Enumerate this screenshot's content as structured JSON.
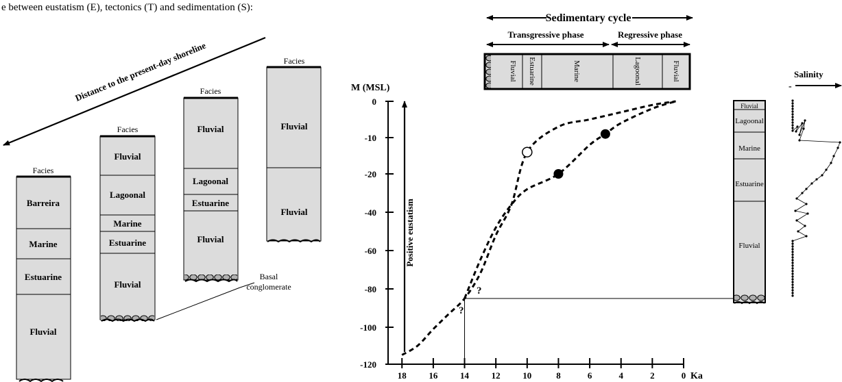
{
  "caption": "e between eustatism  (E), tectonics (T) and sedimentation (S):",
  "distance_label": "Distance to the present-day shoreline",
  "basal_label_1": "Basal",
  "basal_label_2": "conglomerate",
  "columns": [
    {
      "header": "Facies",
      "layers": [
        "Barreira",
        "Marine",
        "Estuarine",
        "Fluvial"
      ]
    },
    {
      "header": "Facies",
      "layers": [
        "Fluvial",
        "Lagoonal",
        "Marine",
        "Estuarine",
        "Fluvial"
      ]
    },
    {
      "header": "Facies",
      "layers": [
        "Fluvial",
        "Lagoonal",
        "Estuarine",
        "Fluvial"
      ]
    },
    {
      "header": "Facies",
      "layers": [
        "Fluvial",
        "Fluvial"
      ]
    }
  ],
  "cycle": {
    "title": "Sedimentary cycle",
    "transgressive": "Transgressive phase",
    "regressive": "Regressive phase",
    "facies": [
      "Fluvial",
      "Estuarine",
      "Marine",
      "Lagoonal",
      "Fluvial"
    ]
  },
  "chart_data": {
    "type": "line",
    "ylabel": "M (MSL)",
    "xlabel_unit": "Ka",
    "arrow_label": "Positive eustatism",
    "x_ticks": [
      18,
      16,
      14,
      12,
      10,
      8,
      6,
      4,
      2,
      0
    ],
    "y_ticks": [
      0,
      -10,
      -20,
      -40,
      -60,
      -80,
      -100,
      -120
    ],
    "question_marks": [
      "?",
      "?"
    ],
    "series": [
      {
        "points": [
          [
            18,
            -115
          ],
          [
            17,
            -110
          ],
          [
            16,
            -101
          ],
          [
            15,
            -93
          ],
          [
            14,
            -85
          ],
          [
            13,
            -72
          ],
          [
            12,
            -52
          ],
          [
            11,
            -36
          ],
          [
            10,
            -14
          ],
          [
            8,
            -7
          ],
          [
            6,
            -5
          ],
          [
            4,
            -3
          ],
          [
            2,
            -1
          ],
          [
            0.5,
            0
          ]
        ],
        "open_marker": [
          10,
          -14
        ]
      },
      {
        "points": [
          [
            14,
            -85
          ],
          [
            13,
            -65
          ],
          [
            12,
            -48
          ],
          [
            11,
            -36
          ],
          [
            10,
            -28
          ],
          [
            8,
            -20
          ],
          [
            6,
            -12
          ],
          [
            5,
            -9
          ],
          [
            4,
            -6
          ],
          [
            2,
            -2
          ],
          [
            0.5,
            0
          ]
        ],
        "filled_markers": [
          [
            8,
            -20
          ],
          [
            5,
            -9
          ]
        ]
      }
    ]
  },
  "right_column": {
    "layers": [
      "Fluvial",
      "Lagoonal",
      "Marine",
      "Estuarine",
      "Fluvial"
    ]
  },
  "salinity": {
    "label": "Salinity",
    "minus": "-"
  }
}
